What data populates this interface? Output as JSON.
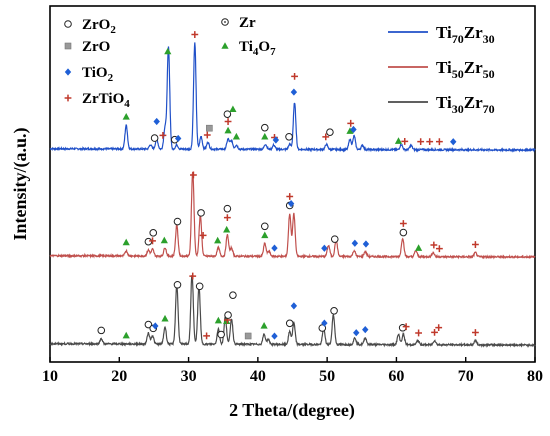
{
  "chart_data": {
    "type": "line",
    "xlabel": "2 Theta/(degree)",
    "ylabel": "Intensity/(a.u.)",
    "xlim": [
      10,
      80
    ],
    "xticks": [
      10,
      20,
      30,
      40,
      50,
      60,
      70,
      80
    ],
    "yticks_shown": false,
    "grid": false,
    "legend_placement": "top-right",
    "marker_legend": [
      {
        "symbol": "circle",
        "label": "ZrO",
        "sub": "2",
        "color": "#333333"
      },
      {
        "symbol": "circle-dot",
        "label": "Zr",
        "sub": "",
        "color": "#333333"
      },
      {
        "symbol": "square",
        "label": "ZrO",
        "sub": "",
        "color": "#888888"
      },
      {
        "symbol": "triangle",
        "label": "Ti",
        "sub": "4",
        "after": "O",
        "sub2": "7",
        "color": "#2ca02c"
      },
      {
        "symbol": "diamond",
        "label": "TiO",
        "sub": "2",
        "color": "#1f5fd6"
      },
      {
        "symbol": "plus",
        "label": "ZrTiO",
        "sub": "4",
        "color": "#c0392b"
      }
    ],
    "series": [
      {
        "name_parts": [
          "Ti",
          "70",
          "Zr",
          "30"
        ],
        "color": "#2050c8",
        "offset": 2.0,
        "peaks": [
          [
            21.0,
            0.28
          ],
          [
            24.5,
            0.05
          ],
          [
            25.4,
            0.12
          ],
          [
            26.6,
            0.25
          ],
          [
            27.1,
            1.2
          ],
          [
            28.3,
            0.05
          ],
          [
            30.9,
            1.25
          ],
          [
            31.8,
            0.15
          ],
          [
            32.8,
            0.08
          ],
          [
            35.7,
            0.12
          ],
          [
            36.2,
            0.1
          ],
          [
            36.9,
            0.05
          ],
          [
            41.1,
            0.06
          ],
          [
            42.3,
            0.05
          ],
          [
            44.6,
            0.06
          ],
          [
            45.3,
            0.55
          ],
          [
            49.9,
            0.06
          ],
          [
            53.3,
            0.12
          ],
          [
            53.9,
            0.16
          ],
          [
            55.1,
            0.05
          ],
          [
            60.7,
            0.06
          ],
          [
            62.1,
            0.05
          ]
        ]
      },
      {
        "name_parts": [
          "Ti",
          "50",
          "Zr",
          "50"
        ],
        "color": "#c0504d",
        "offset": 1.0,
        "peaks": [
          [
            21.0,
            0.06
          ],
          [
            24.2,
            0.07
          ],
          [
            24.8,
            0.08
          ],
          [
            26.6,
            0.1
          ],
          [
            28.3,
            0.36
          ],
          [
            30.6,
            1.0
          ],
          [
            31.7,
            0.48
          ],
          [
            34.3,
            0.1
          ],
          [
            35.6,
            0.25
          ],
          [
            36.2,
            0.1
          ],
          [
            41.0,
            0.15
          ],
          [
            41.6,
            0.06
          ],
          [
            44.6,
            0.5
          ],
          [
            45.2,
            0.5
          ],
          [
            50.2,
            0.13
          ],
          [
            51.3,
            0.2
          ],
          [
            53.9,
            0.07
          ],
          [
            55.5,
            0.06
          ],
          [
            60.9,
            0.22
          ],
          [
            62.8,
            0.07
          ],
          [
            65.3,
            0.05
          ],
          [
            71.4,
            0.05
          ]
        ]
      },
      {
        "name_parts": [
          "Ti",
          "30",
          "Zr",
          "70"
        ],
        "color": "#4a4a4a",
        "offset": 0.0,
        "peaks": [
          [
            17.4,
            0.06
          ],
          [
            24.2,
            0.13
          ],
          [
            24.8,
            0.1
          ],
          [
            26.6,
            0.2
          ],
          [
            28.3,
            0.7
          ],
          [
            30.5,
            0.82
          ],
          [
            31.5,
            0.68
          ],
          [
            34.3,
            0.18
          ],
          [
            35.3,
            0.32
          ],
          [
            36.2,
            0.3
          ],
          [
            40.9,
            0.12
          ],
          [
            41.5,
            0.06
          ],
          [
            44.6,
            0.15
          ],
          [
            45.2,
            0.25
          ],
          [
            49.5,
            0.18
          ],
          [
            50.9,
            0.35
          ],
          [
            54.0,
            0.08
          ],
          [
            55.5,
            0.08
          ],
          [
            60.3,
            0.12
          ],
          [
            61.0,
            0.12
          ],
          [
            63.1,
            0.05
          ],
          [
            65.5,
            0.05
          ],
          [
            71.4,
            0.05
          ]
        ]
      }
    ]
  }
}
